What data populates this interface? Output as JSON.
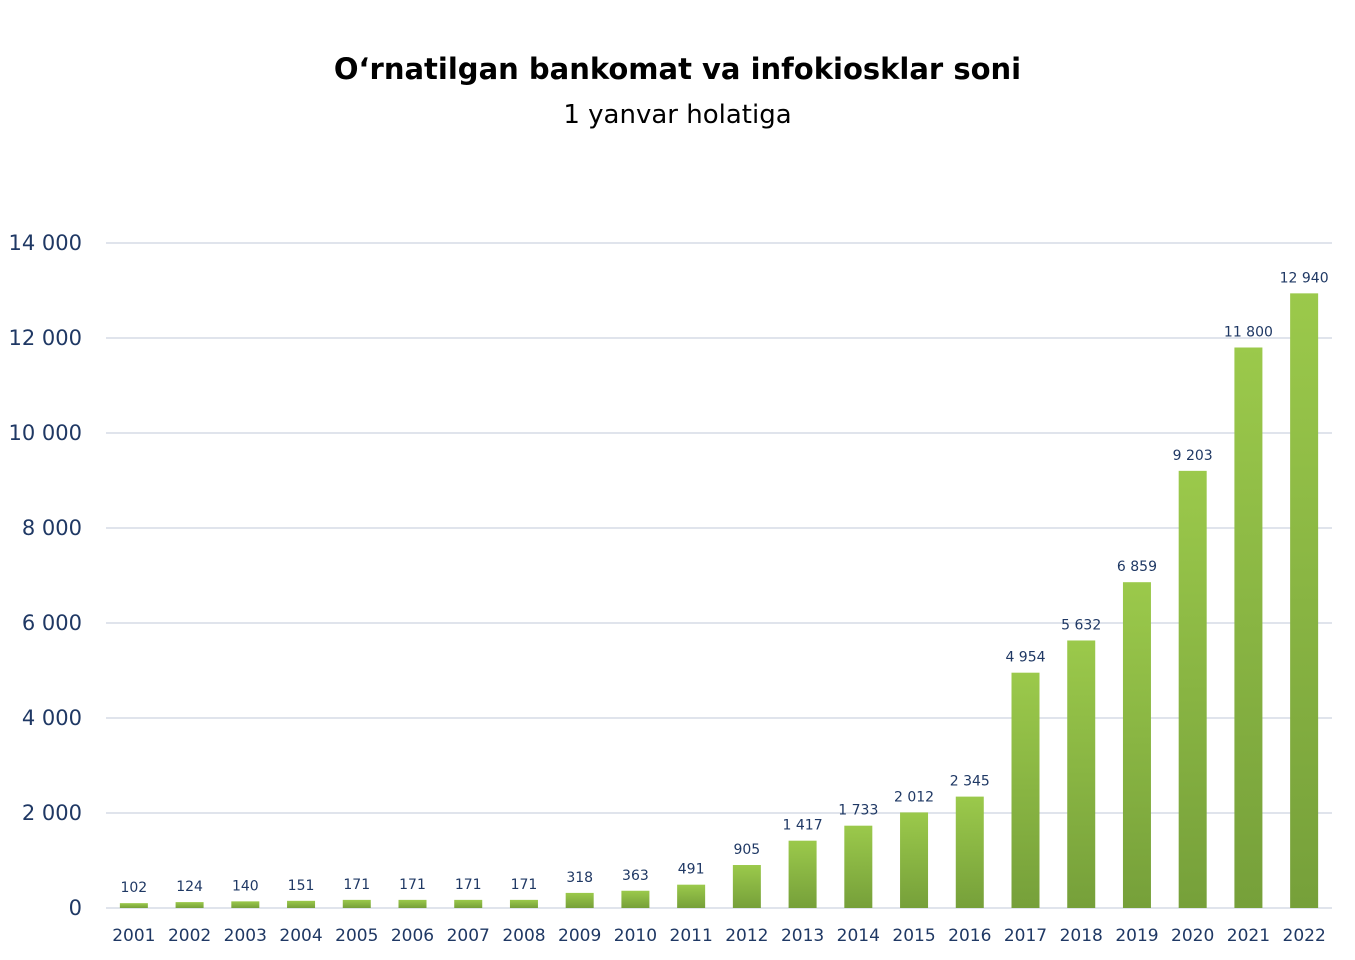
{
  "chart_data": {
    "type": "bar",
    "title": "O‘rnatilgan bankomat va infokiosklar soni",
    "subtitle": "1 yanvar holatiga",
    "categories": [
      "2001",
      "2002",
      "2003",
      "2004",
      "2005",
      "2006",
      "2007",
      "2008",
      "2009",
      "2010",
      "2011",
      "2012",
      "2013",
      "2014",
      "2015",
      "2016",
      "2017",
      "2018",
      "2019",
      "2020",
      "2021",
      "2022"
    ],
    "values": [
      102,
      124,
      140,
      151,
      171,
      171,
      171,
      171,
      318,
      363,
      491,
      905,
      1417,
      1733,
      2012,
      2345,
      4954,
      5632,
      6859,
      9203,
      11800,
      12940
    ],
    "value_labels": [
      "102",
      "124",
      "140",
      "151",
      "171",
      "171",
      "171",
      "171",
      "318",
      "363",
      "491",
      "905",
      "1 417",
      "1 733",
      "2 012",
      "2 345",
      "4 954",
      "5 632",
      "6 859",
      "9 203",
      "11 800",
      "12 940"
    ],
    "ylim": [
      0,
      14000
    ],
    "yticks": [
      0,
      2000,
      4000,
      6000,
      8000,
      10000,
      12000,
      14000
    ],
    "ytick_labels": [
      "0",
      "2 000",
      "4 000",
      "6 000",
      "8 000",
      "10 000",
      "12 000",
      "14 000"
    ],
    "xlabel": "",
    "ylabel": "",
    "grid": true,
    "legend": "none",
    "colors": {
      "bar_top": "#9bc94b",
      "bar_bottom": "#76a03a",
      "grid": "#d6dce5",
      "text": "#1f3864"
    }
  }
}
